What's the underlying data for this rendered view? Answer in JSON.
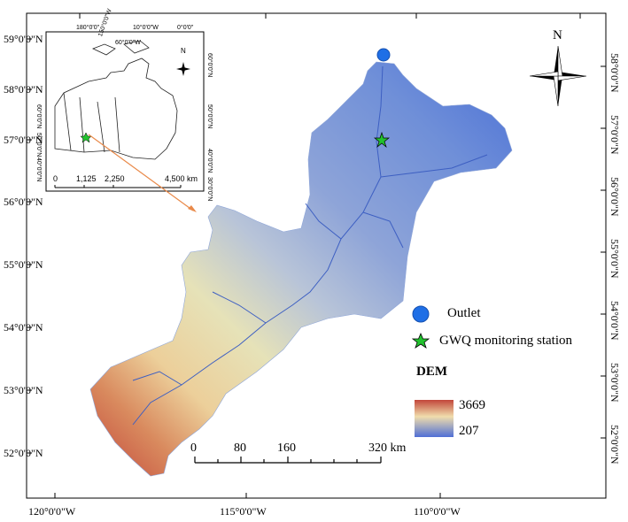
{
  "frame": {
    "lat_labels": [
      "59°0'0\"N",
      "58°0'0\"N",
      "57°0'0\"N",
      "56°0'0\"N",
      "55°0'0\"N",
      "54°0'0\"N",
      "53°0'0\"N",
      "52°0'0\"N"
    ],
    "lon_labels": [
      "120°0'0\"W",
      "115°0'0\"W",
      "110°0'0\"W"
    ]
  },
  "inset": {
    "top_labels": [
      "180°0'0\"",
      "150°0'0\"W",
      "10°0'0\"W",
      "60°0'0\"W",
      "0°0'0\""
    ],
    "right_labels": [
      "60°0'0\"N",
      "50°0'0\"N",
      "40°0'0\"N",
      "30°0'0\"N"
    ],
    "left_labels": [
      "60°0'0\"N",
      "50°0'0\"N",
      "40°0'0\"N"
    ],
    "scale_labels": [
      "0",
      "1,125",
      "2,250",
      "4,500 km"
    ],
    "north": "N"
  },
  "north_arrow": {
    "label": "N"
  },
  "legend": {
    "outlet": "Outlet",
    "station": "GWQ monitoring station",
    "dem_title": "DEM",
    "dem_high": "3669",
    "dem_low": "207",
    "outlet_color": "#1f6fe6",
    "station_color": "#22c22e",
    "dem_colors": [
      "#c2463a",
      "#f0ddac",
      "#4f6fd6"
    ]
  },
  "scale_bar": {
    "labels": [
      "0",
      "80",
      "160",
      "320 km"
    ]
  }
}
